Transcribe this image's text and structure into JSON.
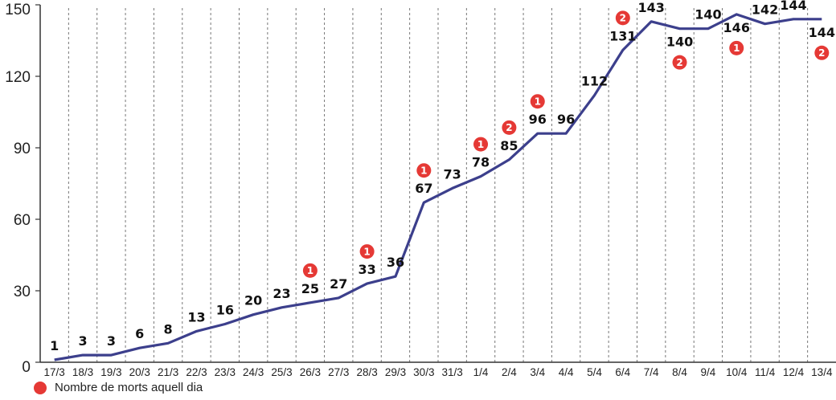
{
  "chart_data": {
    "type": "line",
    "categories": [
      "17/3",
      "18/3",
      "19/3",
      "20/3",
      "21/3",
      "22/3",
      "23/3",
      "24/3",
      "25/3",
      "26/3",
      "27/3",
      "28/3",
      "29/3",
      "30/3",
      "31/3",
      "1/4",
      "2/4",
      "3/4",
      "4/4",
      "5/4",
      "6/4",
      "7/4",
      "8/4",
      "9/4",
      "10/4",
      "11/4",
      "12/4",
      "13/4"
    ],
    "values": [
      1,
      3,
      3,
      6,
      8,
      13,
      16,
      20,
      23,
      25,
      27,
      33,
      36,
      67,
      73,
      78,
      85,
      96,
      96,
      112,
      131,
      143,
      140,
      140,
      146,
      142,
      144,
      144
    ],
    "value_labels": [
      "1",
      "3",
      "3",
      "6",
      "8",
      "13",
      "16",
      "20",
      "23",
      "25",
      "27",
      "33",
      "36",
      "67",
      "73",
      "78",
      "85",
      "96",
      "96",
      "112",
      "131",
      "143",
      "140",
      "140",
      "146",
      "142",
      "144",
      "144"
    ],
    "deaths_per_day": [
      null,
      null,
      null,
      null,
      null,
      null,
      null,
      null,
      null,
      1,
      null,
      1,
      null,
      1,
      null,
      1,
      2,
      1,
      null,
      null,
      2,
      null,
      2,
      null,
      1,
      null,
      null,
      2
    ],
    "deaths_labels": [
      "",
      "",
      "",
      "",
      "",
      "",
      "",
      "",
      "",
      "1",
      "",
      "1",
      "",
      "1",
      "",
      "1",
      "2",
      "1",
      "",
      "",
      "2",
      "",
      "2",
      "",
      "1",
      "",
      "",
      "2"
    ],
    "ylim": [
      0,
      150
    ],
    "yticks": [
      "0",
      "30",
      "60",
      "90",
      "120",
      "150"
    ],
    "ytick_values": [
      0,
      30,
      60,
      90,
      120,
      150
    ],
    "grid": "vertical dashed",
    "line_color": "#3c3f8c",
    "badge_color": "#e53935"
  },
  "legend": {
    "label": "Nombre de morts aquell dia",
    "color": "#e53935"
  }
}
